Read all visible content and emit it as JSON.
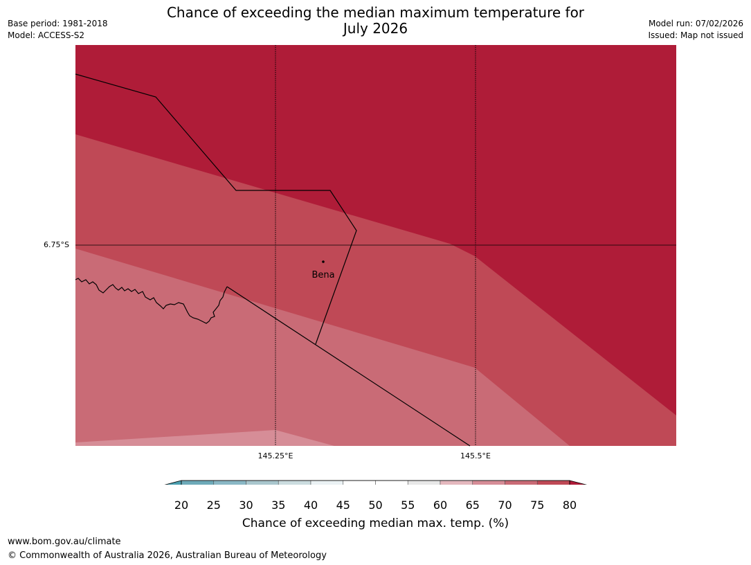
{
  "header": {
    "title_line1": "Chance of exceeding the median maximum temperature for",
    "title_line2": "July 2026",
    "base_period": "Base period: 1981-2018",
    "model": "Model: ACCESS-S2",
    "model_run": "Model run: 07/02/2026",
    "issued": "Issued: Map not issued"
  },
  "map": {
    "lat_label": "6.75°S",
    "lon_labels": [
      "145.25°E",
      "145.5°E"
    ],
    "place_name": "Bena",
    "fill_colors": {
      "above_80": "#af1c38",
      "75_80": "#bf4956",
      "70_75": "#c96b76",
      "65_70": "#d68d97"
    }
  },
  "colorbar": {
    "title": "Chance of exceeding median max. temp. (%)",
    "ticks": [
      "20",
      "25",
      "30",
      "35",
      "40",
      "45",
      "50",
      "55",
      "60",
      "65",
      "70",
      "75",
      "80"
    ],
    "colors": {
      "below": "#4a9fb0",
      "segments": [
        "#6eaab9",
        "#8ab8c5",
        "#a9c6cd",
        "#cbdcdf",
        "#ebf2f4",
        "#ffffff",
        "#ffffff",
        "#e8e8e8",
        "#e4b8be",
        "#d68d97",
        "#c96b76",
        "#bf4956"
      ],
      "above": "#af1c38"
    }
  },
  "footer": {
    "url": "www.bom.gov.au/climate",
    "copyright": "© Commonwealth of Australia 2026, Australian Bureau of Meteorology"
  }
}
